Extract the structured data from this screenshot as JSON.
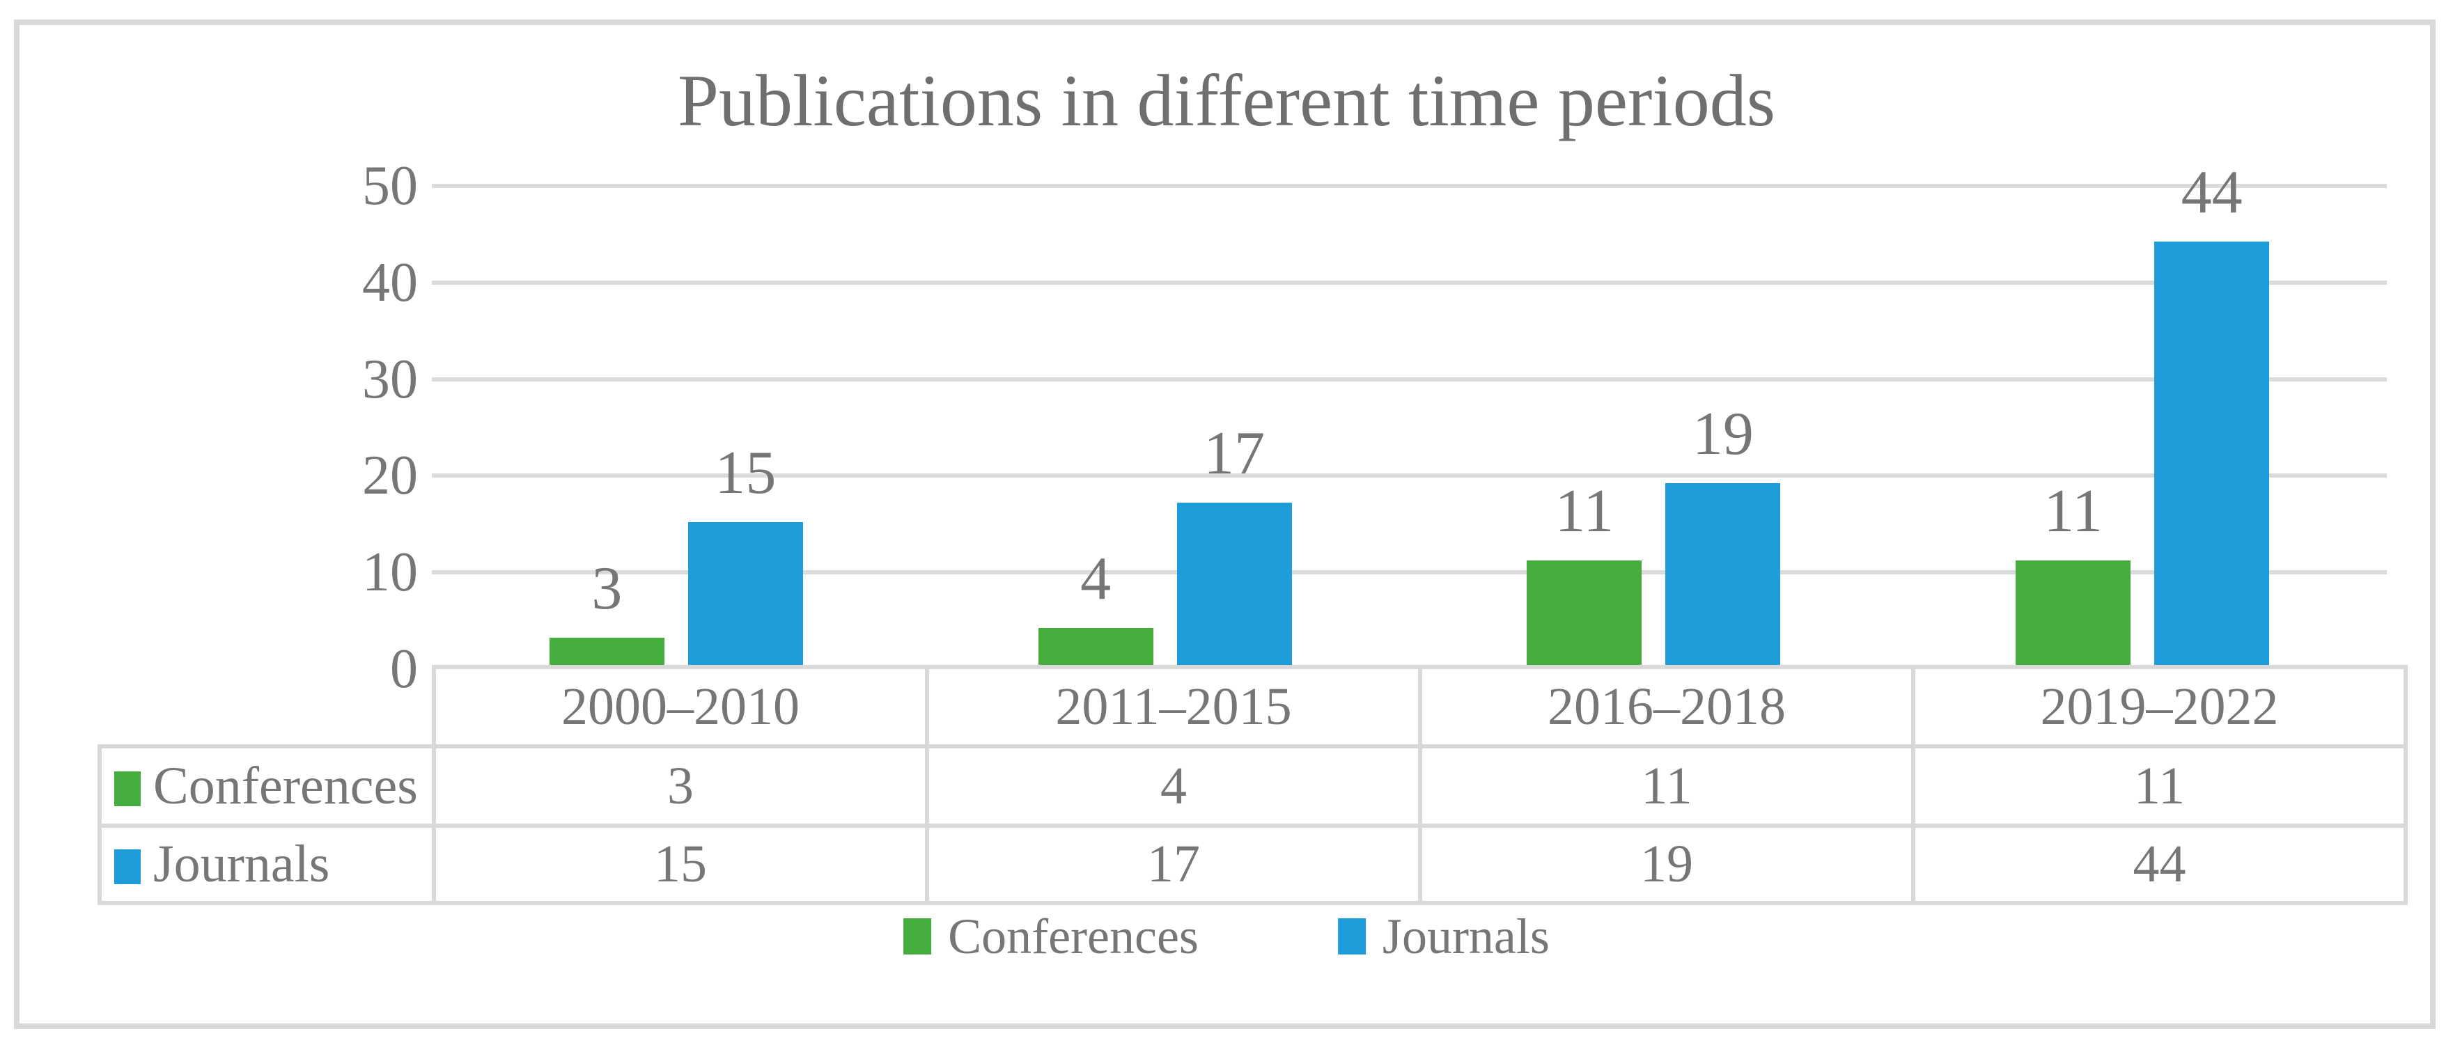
{
  "chart_data": {
    "type": "bar",
    "title": "Publications in different time periods",
    "categories": [
      "2000–2010",
      "2011–2015",
      "2016–2018",
      "2019–2022"
    ],
    "series": [
      {
        "name": "Conferences",
        "color": "#45ad3d",
        "values": [
          3,
          4,
          11,
          11
        ]
      },
      {
        "name": "Journals",
        "color": "#1f9cda",
        "values": [
          15,
          17,
          19,
          44
        ]
      }
    ],
    "ylim": [
      0,
      50
    ],
    "yticks": [
      0,
      10,
      20,
      30,
      40,
      50
    ],
    "grid": "horizontal",
    "legend_position": "bottom",
    "data_labels": true,
    "data_table_shown": true
  },
  "style": {
    "text_color": "#767676",
    "title_color": "#6f6f6f",
    "grid_color": "#dbdbdb",
    "border_color": "#d9d9d9",
    "background": "#ffffff"
  }
}
